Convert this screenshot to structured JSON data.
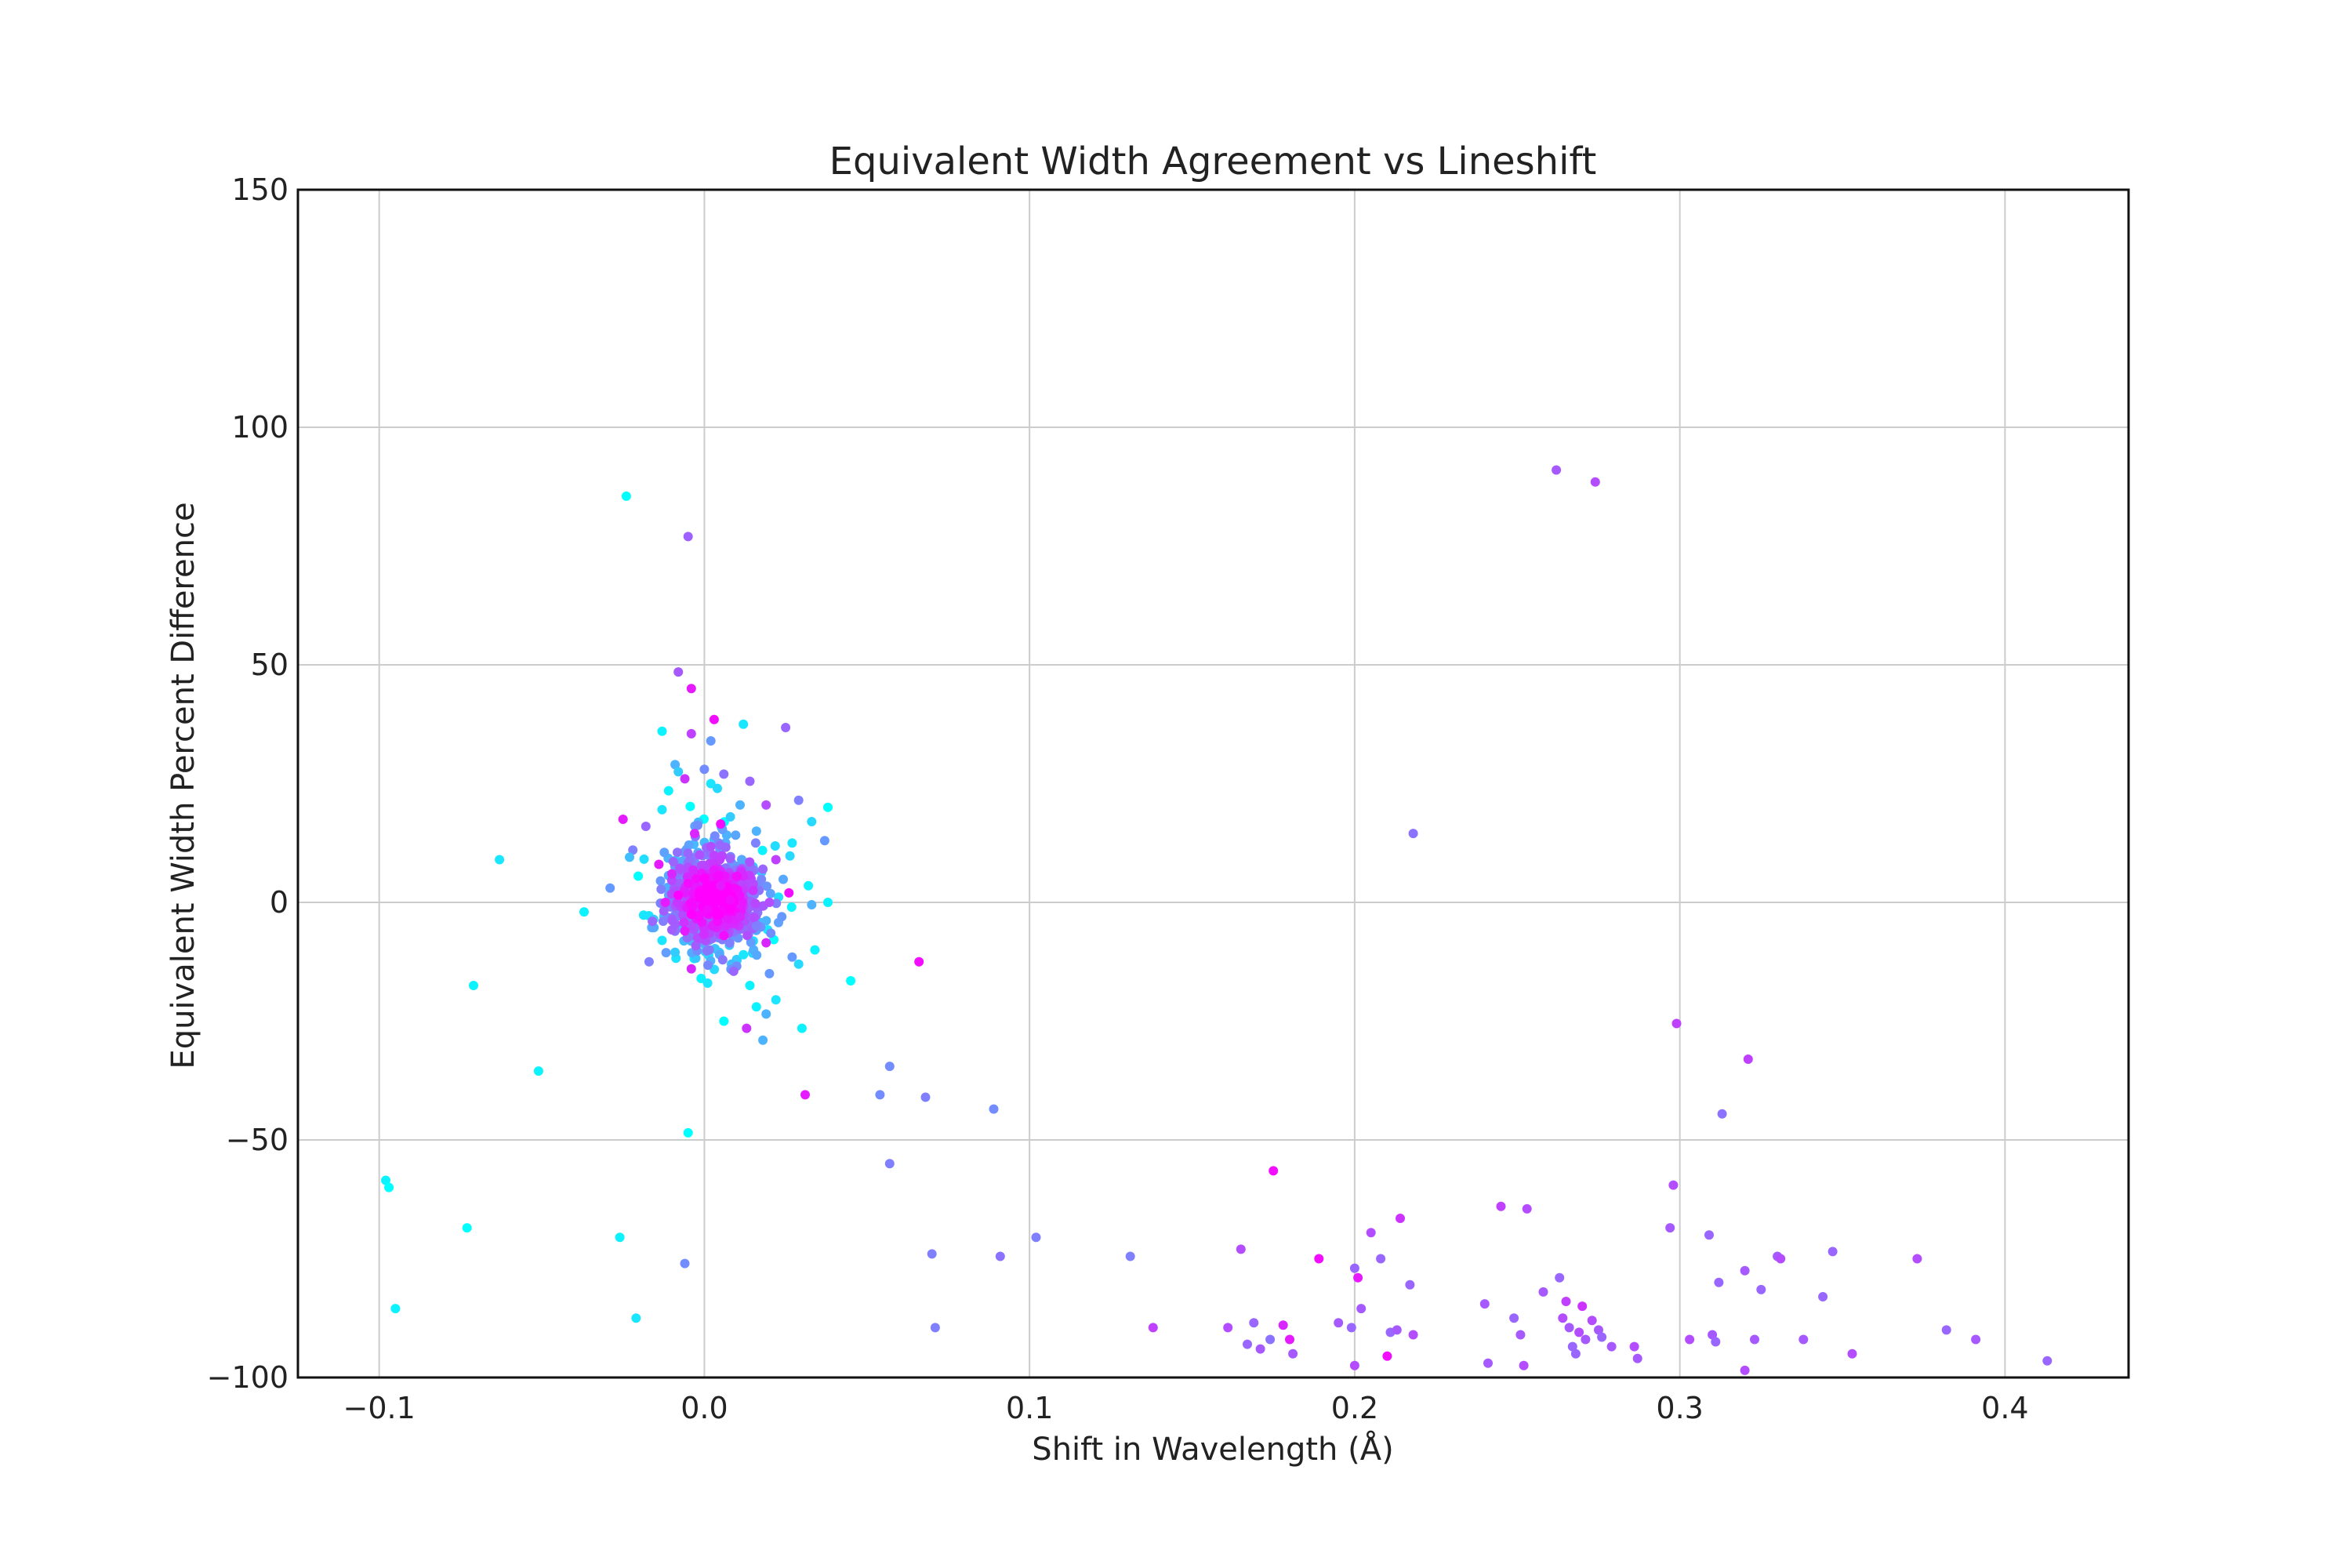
{
  "chart_data": {
    "type": "scatter",
    "title": "Equivalent Width Agreement vs Lineshift",
    "xlabel": "Shift in Wavelength (Å)",
    "ylabel": "Equivalent Width Percent Difference",
    "xlim": [
      -0.125,
      0.438
    ],
    "ylim": [
      -100,
      150
    ],
    "xticks": [
      -0.1,
      0.0,
      0.1,
      0.2,
      0.3,
      0.4
    ],
    "xtick_labels": [
      "−0.1",
      "0.0",
      "0.1",
      "0.2",
      "0.3",
      "0.4"
    ],
    "yticks": [
      -100,
      -50,
      0,
      50,
      100,
      150
    ],
    "ytick_labels": [
      "−100",
      "−50",
      "0",
      "50",
      "100",
      "150"
    ],
    "grid": true,
    "colormap": [
      "#00ffff",
      "#ff00ff"
    ],
    "color_scale_range": [
      0,
      1
    ],
    "points": [
      {
        "x": -0.024,
        "y": 85.5,
        "c": 0.0
      },
      {
        "x": -0.005,
        "y": 77.0,
        "c": 0.62
      },
      {
        "x": -0.008,
        "y": 48.5,
        "c": 0.65
      },
      {
        "x": -0.004,
        "y": 45.0,
        "c": 0.9
      },
      {
        "x": 0.003,
        "y": 38.5,
        "c": 0.95
      },
      {
        "x": -0.013,
        "y": 36.0,
        "c": 0.05
      },
      {
        "x": 0.012,
        "y": 37.5,
        "c": 0.1
      },
      {
        "x": 0.025,
        "y": 36.8,
        "c": 0.6
      },
      {
        "x": -0.004,
        "y": 35.5,
        "c": 0.75
      },
      {
        "x": 0.002,
        "y": 34.0,
        "c": 0.4
      },
      {
        "x": -0.009,
        "y": 29.0,
        "c": 0.3
      },
      {
        "x": -0.008,
        "y": 27.5,
        "c": 0.2
      },
      {
        "x": 0.0,
        "y": 28.0,
        "c": 0.45
      },
      {
        "x": 0.006,
        "y": 27.0,
        "c": 0.55
      },
      {
        "x": -0.006,
        "y": 26.0,
        "c": 0.8
      },
      {
        "x": 0.002,
        "y": 25.0,
        "c": 0.1
      },
      {
        "x": 0.004,
        "y": 24.0,
        "c": 0.15
      },
      {
        "x": -0.011,
        "y": 23.5,
        "c": 0.05
      },
      {
        "x": 0.014,
        "y": 25.5,
        "c": 0.6
      },
      {
        "x": 0.029,
        "y": 21.5,
        "c": 0.5
      },
      {
        "x": 0.038,
        "y": 20.0,
        "c": 0.0
      },
      {
        "x": 0.011,
        "y": 20.5,
        "c": 0.3
      },
      {
        "x": 0.019,
        "y": 20.5,
        "c": 0.7
      },
      {
        "x": -0.013,
        "y": 19.5,
        "c": 0.1
      },
      {
        "x": -0.025,
        "y": 17.5,
        "c": 0.9
      },
      {
        "x": 0.008,
        "y": 18.0,
        "c": 0.2
      },
      {
        "x": 0.033,
        "y": 17.0,
        "c": 0.15
      },
      {
        "x": -0.018,
        "y": 16.0,
        "c": 0.6
      },
      {
        "x": 0.005,
        "y": 16.5,
        "c": 0.95
      },
      {
        "x": 0.016,
        "y": 15.0,
        "c": 0.3
      },
      {
        "x": -0.003,
        "y": 14.5,
        "c": 0.85
      },
      {
        "x": 0.037,
        "y": 13.0,
        "c": 0.4
      },
      {
        "x": 0.027,
        "y": 12.5,
        "c": 0.1
      },
      {
        "x": -0.022,
        "y": 11.0,
        "c": 0.5
      },
      {
        "x": -0.063,
        "y": 9.0,
        "c": 0.1
      },
      {
        "x": -0.023,
        "y": 9.5,
        "c": 0.25
      },
      {
        "x": 0.022,
        "y": 9.0,
        "c": 0.75
      },
      {
        "x": -0.014,
        "y": 8.0,
        "c": 0.9
      },
      {
        "x": 0.018,
        "y": 7.0,
        "c": 0.6
      },
      {
        "x": -0.01,
        "y": 6.0,
        "c": 0.85
      },
      {
        "x": 0.01,
        "y": 5.5,
        "c": 0.95
      },
      {
        "x": 0.0,
        "y": 5.0,
        "c": 1.0
      },
      {
        "x": -0.005,
        "y": 4.0,
        "c": 0.95
      },
      {
        "x": 0.005,
        "y": 3.5,
        "c": 0.9
      },
      {
        "x": 0.032,
        "y": 3.5,
        "c": 0.05
      },
      {
        "x": -0.029,
        "y": 3.0,
        "c": 0.4
      },
      {
        "x": 0.015,
        "y": 2.5,
        "c": 0.8
      },
      {
        "x": 0.026,
        "y": 2.0,
        "c": 0.95
      },
      {
        "x": -0.008,
        "y": 1.5,
        "c": 1.0
      },
      {
        "x": 0.003,
        "y": 1.0,
        "c": 1.0
      },
      {
        "x": 0.008,
        "y": 0.5,
        "c": 0.95
      },
      {
        "x": -0.012,
        "y": 0.0,
        "c": 0.9
      },
      {
        "x": 0.02,
        "y": 0.0,
        "c": 0.7
      },
      {
        "x": 0.038,
        "y": 0.0,
        "c": 0.05
      },
      {
        "x": 0.033,
        "y": -0.5,
        "c": 0.3
      },
      {
        "x": -0.037,
        "y": -2.0,
        "c": 0.05
      },
      {
        "x": 0.001,
        "y": -1.5,
        "c": 0.95
      },
      {
        "x": -0.004,
        "y": -2.5,
        "c": 1.0
      },
      {
        "x": 0.011,
        "y": -3.0,
        "c": 0.85
      },
      {
        "x": -0.016,
        "y": -4.0,
        "c": 0.6
      },
      {
        "x": 0.016,
        "y": -5.0,
        "c": 0.5
      },
      {
        "x": -0.006,
        "y": -6.0,
        "c": 0.9
      },
      {
        "x": 0.006,
        "y": -7.0,
        "c": 0.95
      },
      {
        "x": -0.013,
        "y": -8.0,
        "c": 0.1
      },
      {
        "x": 0.019,
        "y": -8.5,
        "c": 0.85
      },
      {
        "x": 0.034,
        "y": -10.0,
        "c": 0.05
      },
      {
        "x": -0.009,
        "y": -10.5,
        "c": 0.2
      },
      {
        "x": 0.012,
        "y": -11.0,
        "c": 0.1
      },
      {
        "x": 0.027,
        "y": -11.5,
        "c": 0.4
      },
      {
        "x": -0.017,
        "y": -12.5,
        "c": 0.5
      },
      {
        "x": 0.029,
        "y": -13.0,
        "c": 0.15
      },
      {
        "x": -0.004,
        "y": -14.0,
        "c": 0.85
      },
      {
        "x": 0.009,
        "y": -14.5,
        "c": 0.6
      },
      {
        "x": -0.001,
        "y": -16.0,
        "c": 0.05
      },
      {
        "x": 0.02,
        "y": -15.0,
        "c": 0.4
      },
      {
        "x": 0.001,
        "y": -17.0,
        "c": 0.1
      },
      {
        "x": 0.014,
        "y": -17.5,
        "c": 0.05
      },
      {
        "x": 0.045,
        "y": -16.5,
        "c": 0.0
      },
      {
        "x": -0.071,
        "y": -17.5,
        "c": 0.05
      },
      {
        "x": 0.022,
        "y": -20.5,
        "c": 0.1
      },
      {
        "x": 0.016,
        "y": -22.0,
        "c": 0.05
      },
      {
        "x": 0.019,
        "y": -23.5,
        "c": 0.3
      },
      {
        "x": 0.006,
        "y": -25.0,
        "c": 0.0
      },
      {
        "x": 0.013,
        "y": -26.5,
        "c": 0.8
      },
      {
        "x": 0.03,
        "y": -26.5,
        "c": 0.05
      },
      {
        "x": 0.018,
        "y": -29.0,
        "c": 0.3
      },
      {
        "x": 0.066,
        "y": -12.5,
        "c": 0.95
      },
      {
        "x": 0.057,
        "y": -34.5,
        "c": 0.45
      },
      {
        "x": -0.051,
        "y": -35.5,
        "c": 0.05
      },
      {
        "x": 0.031,
        "y": -40.5,
        "c": 0.9
      },
      {
        "x": 0.054,
        "y": -40.5,
        "c": 0.45
      },
      {
        "x": 0.068,
        "y": -41.0,
        "c": 0.5
      },
      {
        "x": 0.089,
        "y": -43.5,
        "c": 0.45
      },
      {
        "x": -0.005,
        "y": -48.5,
        "c": 0.0
      },
      {
        "x": 0.057,
        "y": -55.0,
        "c": 0.5
      },
      {
        "x": -0.098,
        "y": -58.5,
        "c": 0.05
      },
      {
        "x": -0.097,
        "y": -60.0,
        "c": 0.0
      },
      {
        "x": -0.073,
        "y": -68.5,
        "c": 0.0
      },
      {
        "x": -0.026,
        "y": -70.5,
        "c": 0.05
      },
      {
        "x": 0.102,
        "y": -70.5,
        "c": 0.5
      },
      {
        "x": 0.07,
        "y": -74.0,
        "c": 0.5
      },
      {
        "x": 0.091,
        "y": -74.5,
        "c": 0.55
      },
      {
        "x": 0.131,
        "y": -74.5,
        "c": 0.5
      },
      {
        "x": -0.006,
        "y": -76.0,
        "c": 0.45
      },
      {
        "x": -0.095,
        "y": -85.5,
        "c": 0.05
      },
      {
        "x": -0.021,
        "y": -87.5,
        "c": 0.1
      },
      {
        "x": 0.071,
        "y": -89.5,
        "c": 0.5
      },
      {
        "x": 0.138,
        "y": -89.5,
        "c": 0.75
      },
      {
        "x": 0.161,
        "y": -89.5,
        "c": 0.7
      },
      {
        "x": 0.165,
        "y": -73.0,
        "c": 0.7
      },
      {
        "x": 0.169,
        "y": -88.5,
        "c": 0.6
      },
      {
        "x": 0.167,
        "y": -93.0,
        "c": 0.6
      },
      {
        "x": 0.171,
        "y": -94.0,
        "c": 0.65
      },
      {
        "x": 0.174,
        "y": -92.0,
        "c": 0.55
      },
      {
        "x": 0.175,
        "y": -56.5,
        "c": 0.95
      },
      {
        "x": 0.178,
        "y": -89.0,
        "c": 0.85
      },
      {
        "x": 0.18,
        "y": -92.0,
        "c": 0.9
      },
      {
        "x": 0.181,
        "y": -95.0,
        "c": 0.65
      },
      {
        "x": 0.189,
        "y": -75.0,
        "c": 0.95
      },
      {
        "x": 0.195,
        "y": -88.5,
        "c": 0.65
      },
      {
        "x": 0.199,
        "y": -89.5,
        "c": 0.6
      },
      {
        "x": 0.2,
        "y": -77.0,
        "c": 0.6
      },
      {
        "x": 0.201,
        "y": -79.0,
        "c": 0.9
      },
      {
        "x": 0.202,
        "y": -85.5,
        "c": 0.65
      },
      {
        "x": 0.2,
        "y": -97.5,
        "c": 0.7
      },
      {
        "x": 0.205,
        "y": -69.5,
        "c": 0.7
      },
      {
        "x": 0.208,
        "y": -75.0,
        "c": 0.6
      },
      {
        "x": 0.211,
        "y": -90.5,
        "c": 0.6
      },
      {
        "x": 0.213,
        "y": -90.0,
        "c": 0.65
      },
      {
        "x": 0.21,
        "y": -95.5,
        "c": 0.95
      },
      {
        "x": 0.214,
        "y": -66.5,
        "c": 0.8
      },
      {
        "x": 0.217,
        "y": -80.5,
        "c": 0.6
      },
      {
        "x": 0.218,
        "y": -91.0,
        "c": 0.7
      },
      {
        "x": 0.218,
        "y": 14.5,
        "c": 0.55
      },
      {
        "x": 0.24,
        "y": -84.5,
        "c": 0.65
      },
      {
        "x": 0.241,
        "y": -97.0,
        "c": 0.65
      },
      {
        "x": 0.245,
        "y": -64.0,
        "c": 0.75
      },
      {
        "x": 0.249,
        "y": -87.5,
        "c": 0.6
      },
      {
        "x": 0.251,
        "y": -91.0,
        "c": 0.65
      },
      {
        "x": 0.252,
        "y": -97.5,
        "c": 0.7
      },
      {
        "x": 0.253,
        "y": -64.5,
        "c": 0.7
      },
      {
        "x": 0.258,
        "y": -82.0,
        "c": 0.65
      },
      {
        "x": 0.262,
        "y": 91.0,
        "c": 0.65
      },
      {
        "x": 0.263,
        "y": -79.0,
        "c": 0.6
      },
      {
        "x": 0.264,
        "y": -87.5,
        "c": 0.7
      },
      {
        "x": 0.265,
        "y": -84.0,
        "c": 0.75
      },
      {
        "x": 0.266,
        "y": -89.5,
        "c": 0.65
      },
      {
        "x": 0.267,
        "y": -93.5,
        "c": 0.6
      },
      {
        "x": 0.269,
        "y": -90.5,
        "c": 0.7
      },
      {
        "x": 0.27,
        "y": -85.0,
        "c": 0.8
      },
      {
        "x": 0.271,
        "y": -92.0,
        "c": 0.65
      },
      {
        "x": 0.268,
        "y": -95.0,
        "c": 0.6
      },
      {
        "x": 0.273,
        "y": -88.0,
        "c": 0.7
      },
      {
        "x": 0.274,
        "y": 88.5,
        "c": 0.7
      },
      {
        "x": 0.275,
        "y": -90.0,
        "c": 0.65
      },
      {
        "x": 0.276,
        "y": -91.5,
        "c": 0.6
      },
      {
        "x": 0.279,
        "y": -93.5,
        "c": 0.65
      },
      {
        "x": 0.286,
        "y": -93.5,
        "c": 0.7
      },
      {
        "x": 0.287,
        "y": -96.0,
        "c": 0.65
      },
      {
        "x": 0.297,
        "y": -68.5,
        "c": 0.65
      },
      {
        "x": 0.298,
        "y": -59.5,
        "c": 0.7
      },
      {
        "x": 0.299,
        "y": -25.5,
        "c": 0.75
      },
      {
        "x": 0.303,
        "y": -92.0,
        "c": 0.7
      },
      {
        "x": 0.309,
        "y": -70.0,
        "c": 0.6
      },
      {
        "x": 0.31,
        "y": -91.0,
        "c": 0.65
      },
      {
        "x": 0.311,
        "y": -92.5,
        "c": 0.6
      },
      {
        "x": 0.312,
        "y": -80.0,
        "c": 0.6
      },
      {
        "x": 0.313,
        "y": -44.5,
        "c": 0.55
      },
      {
        "x": 0.32,
        "y": -77.5,
        "c": 0.65
      },
      {
        "x": 0.321,
        "y": -33.0,
        "c": 0.75
      },
      {
        "x": 0.32,
        "y": -98.5,
        "c": 0.7
      },
      {
        "x": 0.323,
        "y": -92.0,
        "c": 0.65
      },
      {
        "x": 0.325,
        "y": -81.5,
        "c": 0.6
      },
      {
        "x": 0.33,
        "y": -74.5,
        "c": 0.65
      },
      {
        "x": 0.331,
        "y": -75.0,
        "c": 0.7
      },
      {
        "x": 0.338,
        "y": -92.0,
        "c": 0.65
      },
      {
        "x": 0.344,
        "y": -83.0,
        "c": 0.6
      },
      {
        "x": 0.347,
        "y": -73.5,
        "c": 0.6
      },
      {
        "x": 0.353,
        "y": -95.0,
        "c": 0.7
      },
      {
        "x": 0.373,
        "y": -75.0,
        "c": 0.7
      },
      {
        "x": 0.382,
        "y": -90.0,
        "c": 0.6
      },
      {
        "x": 0.391,
        "y": -92.0,
        "c": 0.65
      },
      {
        "x": 0.413,
        "y": -96.5,
        "c": 0.6
      }
    ],
    "cluster_generator": {
      "count": 700,
      "x_center": 0.003,
      "x_spread": 0.0075,
      "y_center": 1.0,
      "y_spread": 5.5,
      "seed": 12345
    }
  }
}
